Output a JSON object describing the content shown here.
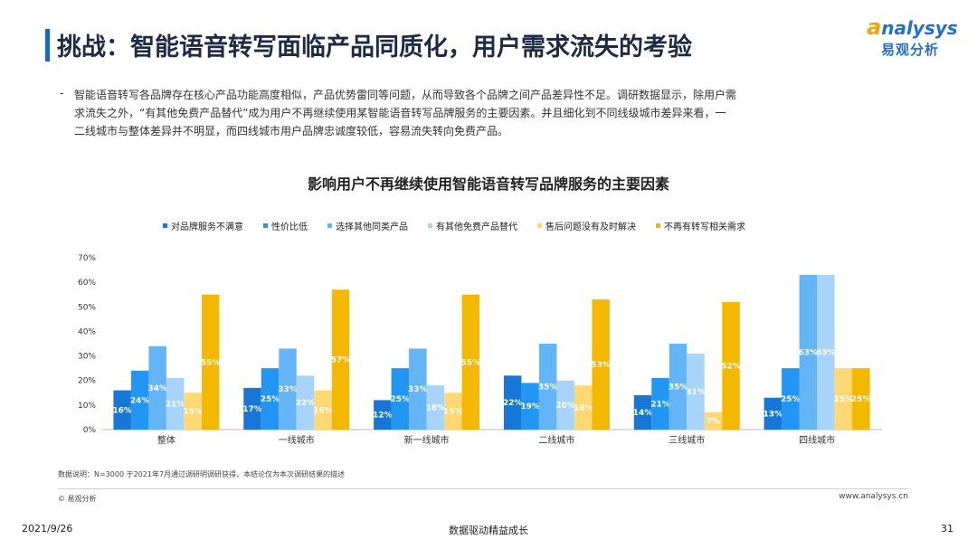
{
  "header": {
    "title": "挑战：智能语音转写面临产品同质化，用户需求流失的考验",
    "logo_en_first": "a",
    "logo_en_rest": "nalysys",
    "logo_cn": "易观分析"
  },
  "intro": {
    "bullet": "-",
    "lines": [
      "智能语音转写各品牌存在核心产品功能高度相似，产品优势雷同等问题，从而导致各个品牌之间产品差异性不足。调研数据显示，除用户需",
      "求流失之外，“有其他免费产品替代”成为用户不再继续使用某智能语音转写品牌服务的主要因素。并且细化到不同线级城市差异来看，一",
      "二线城市与整体差异并不明显，而四线城市用户品牌忠诚度较低，容易流失转向免费产品。"
    ]
  },
  "chart_data": {
    "type": "bar",
    "title": "影响用户不再继续使用智能语音转写品牌服务的主要因素",
    "categories": [
      "整体",
      "一线城市",
      "新一线城市",
      "二线城市",
      "三线城市",
      "四线城市"
    ],
    "y_ticks": [
      "0%",
      "10%",
      "20%",
      "30%",
      "40%",
      "50%",
      "60%",
      "70%"
    ],
    "ylim": [
      0,
      70
    ],
    "legend_position": "top",
    "series": [
      {
        "name": "对品牌服务不满意",
        "color": "#1677d9",
        "values": [
          16,
          17,
          12,
          22,
          14,
          13
        ]
      },
      {
        "name": "性价比低",
        "color": "#2196f3",
        "values": [
          24,
          25,
          25,
          19,
          21,
          25
        ]
      },
      {
        "name": "选择其他同类产品",
        "color": "#64b5f6",
        "values": [
          34,
          33,
          33,
          35,
          35,
          63
        ]
      },
      {
        "name": "有其他免费产品替代",
        "color": "#a8d4fa",
        "values": [
          21,
          22,
          18,
          20,
          31,
          63
        ]
      },
      {
        "name": "售后问题没有及时解决",
        "color": "#ffd873",
        "values": [
          15,
          16,
          15,
          18,
          7,
          25
        ]
      },
      {
        "name": "不再有转写相关需求",
        "color": "#f5b800",
        "values": [
          55,
          57,
          55,
          53,
          52,
          25
        ]
      }
    ]
  },
  "footer": {
    "note": "数据说明：N=3000  于2021年7月通过调研明调研获得，本结论仅为本次调研结果的描述",
    "copyright": "© 易观分析",
    "site": "www.analysys.cn",
    "date": "2021/9/26",
    "slogan": "数据驱动精益成长",
    "page": "31"
  }
}
